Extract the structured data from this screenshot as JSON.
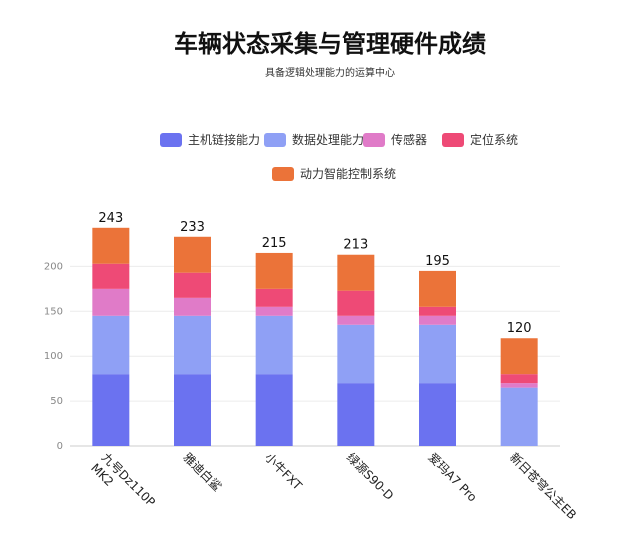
{
  "chart_data": {
    "type": "bar",
    "stacked": true,
    "title": "车辆状态采集与管理硬件成绩",
    "subtitle": "具备逻辑处理能力的运算中心",
    "categories": [
      "九号Dz110P MK2",
      "雅迪白鲨",
      "小牛FXT",
      "绿源S90-D",
      "爱玛A7 Pro",
      "新日苍穹公主EB"
    ],
    "series": [
      {
        "name": "主机链接能力",
        "color": "#6b72f0",
        "values": [
          80,
          80,
          80,
          70,
          70,
          0
        ]
      },
      {
        "name": "数据处理能力",
        "color": "#8fa0f5",
        "values": [
          65,
          65,
          65,
          65,
          65,
          65
        ]
      },
      {
        "name": "传感器",
        "color": "#e07bc8",
        "values": [
          30,
          20,
          10,
          10,
          10,
          5
        ]
      },
      {
        "name": "定位系统",
        "color": "#ee4a76",
        "values": [
          28,
          28,
          20,
          28,
          10,
          10
        ]
      },
      {
        "name": "动力智能控制系统",
        "color": "#eb7339",
        "values": [
          40,
          40,
          40,
          40,
          40,
          40
        ]
      }
    ],
    "totals": [
      243,
      233,
      215,
      213,
      195,
      120
    ],
    "yticks": [
      0,
      50,
      100,
      150,
      200
    ],
    "ylim": [
      0,
      245
    ],
    "legend": "top-center",
    "grid": true
  }
}
